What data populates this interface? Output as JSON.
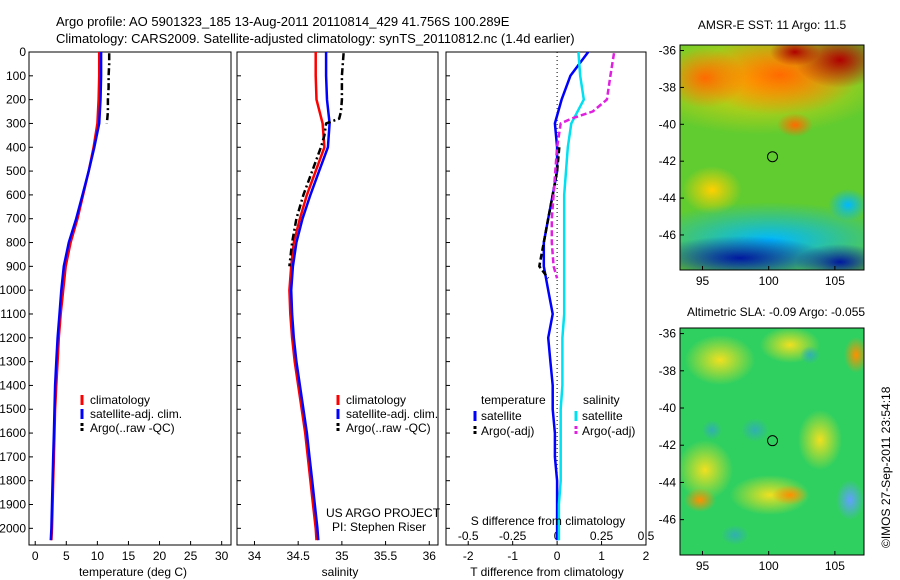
{
  "figure": {
    "title_line1": "Argo profile: AO 5901323_185 13-Aug-2011 20110814_429 41.756S 100.289E",
    "title_line2": "Climatology: CARS2009. Satellite-adjusted climatology: synTS_20110812.nc (1.4d earlier)",
    "credit": "©IMOS 27-Sep-2011 23:54:18"
  },
  "colors": {
    "climatology": "#ff0000",
    "satellite": "#0000ff",
    "argo": "#000000",
    "salinity_satellite": "#00e0f0",
    "salinity_argo": "#e020e0"
  },
  "chart_data": [
    {
      "id": "temperature",
      "type": "line",
      "xlabel": "temperature (deg C)",
      "xlim": [
        -1,
        31.5
      ],
      "ylim": [
        2070,
        0
      ],
      "y_reversed": true,
      "xticks": [
        0,
        5,
        10,
        15,
        20,
        25,
        30
      ],
      "yticks": [
        0,
        100,
        200,
        300,
        400,
        500,
        600,
        700,
        800,
        900,
        1000,
        1100,
        1200,
        1300,
        1400,
        1500,
        1600,
        1700,
        1800,
        1900,
        2000
      ],
      "legend": [
        "climatology",
        "satellite-adj. clim.",
        "Argo(..raw -QC)"
      ],
      "legend_position": "lower-center",
      "series": [
        {
          "name": "climatology",
          "color": "#ff0000",
          "style": "solid",
          "depth": [
            0,
            100,
            200,
            300,
            400,
            500,
            600,
            700,
            800,
            900,
            1000,
            1100,
            1200,
            1300,
            1400,
            1500,
            1600,
            1700,
            1800,
            1900,
            2000,
            2050
          ],
          "values": [
            10.3,
            10.3,
            10.2,
            10.0,
            9.4,
            8.6,
            7.7,
            6.8,
            5.7,
            4.9,
            4.5,
            4.1,
            3.8,
            3.6,
            3.4,
            3.2,
            3.1,
            3.0,
            2.9,
            2.8,
            2.7,
            2.6
          ]
        },
        {
          "name": "satellite-adj. clim.",
          "color": "#0000ff",
          "style": "solid",
          "depth": [
            0,
            100,
            200,
            300,
            400,
            500,
            600,
            700,
            800,
            900,
            1000,
            1100,
            1200,
            1300,
            1400,
            1500,
            1600,
            1700,
            1800,
            1900,
            2000,
            2050
          ],
          "values": [
            10.6,
            10.6,
            10.5,
            10.3,
            9.5,
            8.6,
            7.6,
            6.6,
            5.4,
            4.6,
            4.2,
            3.9,
            3.6,
            3.4,
            3.2,
            3.1,
            3.0,
            2.9,
            2.8,
            2.7,
            2.6,
            2.5
          ]
        },
        {
          "name": "Argo(..raw -QC)",
          "color": "#000000",
          "style": "dashdot",
          "depth": [
            5,
            50,
            100,
            150,
            200,
            250,
            280,
            300
          ],
          "values": [
            11.9,
            11.9,
            11.8,
            11.8,
            11.7,
            11.7,
            11.6,
            11.5
          ]
        }
      ]
    },
    {
      "id": "salinity",
      "type": "line",
      "xlabel": "salinity",
      "xlim": [
        33.8,
        36.1
      ],
      "ylim": [
        2070,
        0
      ],
      "y_reversed": true,
      "xticks": [
        34,
        34.5,
        35,
        35.5,
        36
      ],
      "legend": [
        "climatology",
        "satellite-adj. clim.",
        "Argo(..raw -QC)"
      ],
      "legend_position": "lower-right",
      "annotation": [
        "US ARGO PROJECT",
        "PI: Stephen Riser"
      ],
      "series": [
        {
          "name": "climatology",
          "color": "#ff0000",
          "style": "solid",
          "depth": [
            0,
            100,
            200,
            300,
            400,
            500,
            600,
            700,
            800,
            900,
            1000,
            1100,
            1200,
            1300,
            1400,
            1500,
            1600,
            1700,
            1800,
            1900,
            2000,
            2050
          ],
          "values": [
            34.7,
            34.7,
            34.71,
            34.78,
            34.8,
            34.7,
            34.6,
            34.52,
            34.45,
            34.42,
            34.4,
            34.41,
            34.43,
            34.46,
            34.5,
            34.54,
            34.58,
            34.61,
            34.64,
            34.67,
            34.7,
            34.71
          ]
        },
        {
          "name": "satellite-adj. clim.",
          "color": "#0000ff",
          "style": "solid",
          "depth": [
            0,
            100,
            200,
            300,
            400,
            500,
            600,
            700,
            800,
            900,
            1000,
            1100,
            1200,
            1300,
            1400,
            1500,
            1600,
            1700,
            1800,
            1900,
            2000,
            2050
          ],
          "values": [
            34.82,
            34.82,
            34.83,
            34.86,
            34.84,
            34.74,
            34.64,
            34.55,
            34.48,
            34.44,
            34.42,
            34.43,
            34.45,
            34.48,
            34.52,
            34.56,
            34.6,
            34.63,
            34.66,
            34.69,
            34.72,
            34.73
          ]
        },
        {
          "name": "Argo(..raw -QC)",
          "color": "#000000",
          "style": "dashdot",
          "depth": [
            5,
            100,
            200,
            250,
            280,
            300,
            350,
            400,
            500,
            600,
            700,
            800,
            900
          ],
          "values": [
            35.02,
            35.0,
            35.0,
            34.99,
            34.97,
            34.82,
            34.8,
            34.76,
            34.66,
            34.56,
            34.48,
            34.43,
            34.4
          ]
        }
      ]
    },
    {
      "id": "difference",
      "type": "line",
      "xlabel": "T difference from climatology",
      "xlabel_top": "S difference from climatology",
      "xlim": [
        -2.5,
        2
      ],
      "ylim": [
        2070,
        0
      ],
      "y_reversed": true,
      "xticks_T": [
        -2,
        -1,
        0,
        1,
        2
      ],
      "xticks_S": [
        -0.5,
        -0.25,
        0,
        0.25,
        0.5
      ],
      "legend_title_left": "temperature",
      "legend_title_right": "salinity",
      "legend": [
        "satellite",
        "Argo(-adj)",
        "satellite",
        "Argo(-adj)"
      ],
      "series": [
        {
          "name": "temperature satellite",
          "color": "#0000ff",
          "style": "solid",
          "depth": [
            0,
            100,
            200,
            300,
            400,
            500,
            600,
            700,
            800,
            900,
            1000,
            1100,
            1200,
            1300,
            1400,
            1500,
            1600,
            1700,
            1800,
            1900,
            2000,
            2050
          ],
          "values": [
            0.7,
            0.3,
            0.1,
            -0.05,
            0,
            0,
            -0.1,
            -0.2,
            -0.3,
            -0.3,
            -0.2,
            -0.1,
            -0.2,
            -0.15,
            -0.1,
            -0.1,
            -0.05,
            -0.05,
            0,
            0,
            0,
            0
          ]
        },
        {
          "name": "temperature Argo(-adj)",
          "color": "#000000",
          "style": "dashed",
          "depth": [
            400,
            500,
            600,
            700,
            800,
            900,
            950
          ],
          "values": [
            0.05,
            0.0,
            -0.1,
            -0.2,
            -0.3,
            -0.4,
            -0.2
          ]
        },
        {
          "name": "salinity satellite",
          "color": "#00e0f0",
          "style": "solid",
          "depth": [
            0,
            100,
            200,
            300,
            400,
            500,
            600,
            700,
            800,
            900,
            1000,
            1100,
            1200,
            1300,
            1400,
            1500,
            1600,
            1700,
            1800,
            1900,
            2000,
            2050
          ],
          "values": [
            0.12,
            0.13,
            0.15,
            0.08,
            0.06,
            0.05,
            0.04,
            0.04,
            0.04,
            0.04,
            0.04,
            0.04,
            0.03,
            0.03,
            0.03,
            0.02,
            0.02,
            0.02,
            0.02,
            0.01,
            0.01,
            0.01
          ]
        },
        {
          "name": "salinity Argo(-adj)",
          "color": "#e020e0",
          "style": "dashed",
          "depth": [
            5,
            100,
            200,
            250,
            280,
            300,
            400,
            500,
            600,
            700,
            800,
            900,
            950
          ],
          "values": [
            0.32,
            0.3,
            0.28,
            0.2,
            0.08,
            0.02,
            0.0,
            -0.01,
            -0.02,
            -0.03,
            -0.03,
            -0.02,
            0.0
          ]
        }
      ]
    }
  ],
  "maps": [
    {
      "id": "sst",
      "title": "AMSR-E SST: 11 Argo: 11.5",
      "lat_ticks": [
        -36,
        -38,
        -40,
        -42,
        -44,
        -46
      ],
      "lon_ticks": [
        95,
        100,
        105
      ],
      "lat_range": [
        -47.9,
        -35.7
      ],
      "lon_range": [
        93.3,
        107.2
      ],
      "marker": {
        "lon": 100.289,
        "lat": -41.756
      }
    },
    {
      "id": "sla",
      "title": "Altimetric SLA: -0.09 Argo: -0.055",
      "lat_ticks": [
        -36,
        -38,
        -40,
        -42,
        -44,
        -46
      ],
      "lon_ticks": [
        95,
        100,
        105
      ],
      "lat_range": [
        -47.9,
        -35.7
      ],
      "lon_range": [
        93.3,
        107.2
      ],
      "marker": {
        "lon": 100.289,
        "lat": -41.756
      }
    }
  ]
}
